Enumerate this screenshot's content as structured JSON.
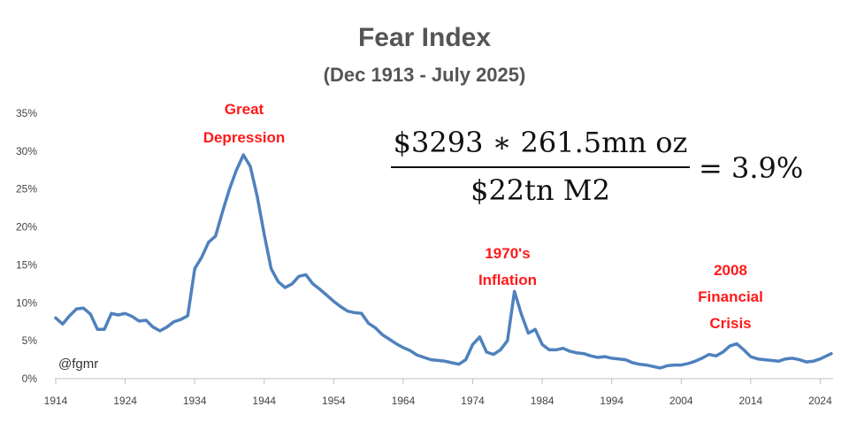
{
  "chart_data": {
    "type": "line",
    "title": "Fear Index",
    "subtitle": "(Dec 1913 - July 2025)",
    "xlabel": "",
    "ylabel": "",
    "xlim": [
      1914,
      2025.6
    ],
    "ylim": [
      0,
      35
    ],
    "grid": false,
    "x_ticks": [
      "1914",
      "1924",
      "1934",
      "1944",
      "1954",
      "1964",
      "1974",
      "1984",
      "1994",
      "2004",
      "2014",
      "2024"
    ],
    "y_ticks": [
      "0%",
      "5%",
      "10%",
      "15%",
      "20%",
      "25%",
      "30%",
      "35%"
    ],
    "color": "#4f81bd",
    "series": [
      {
        "points": [
          [
            1914,
            8.0
          ],
          [
            1915,
            7.2
          ],
          [
            1916,
            8.3
          ],
          [
            1917,
            9.2
          ],
          [
            1918,
            9.3
          ],
          [
            1919,
            8.5
          ],
          [
            1920,
            6.5
          ],
          [
            1921,
            6.5
          ],
          [
            1922,
            8.6
          ],
          [
            1923,
            8.4
          ],
          [
            1924,
            8.6
          ],
          [
            1925,
            8.2
          ],
          [
            1926,
            7.6
          ],
          [
            1927,
            7.7
          ],
          [
            1928,
            6.8
          ],
          [
            1929,
            6.3
          ],
          [
            1930,
            6.8
          ],
          [
            1931,
            7.5
          ],
          [
            1932,
            7.8
          ],
          [
            1933,
            8.3
          ],
          [
            1934,
            14.5
          ],
          [
            1935,
            16.0
          ],
          [
            1936,
            18.0
          ],
          [
            1937,
            18.8
          ],
          [
            1938,
            22.0
          ],
          [
            1939,
            25.0
          ],
          [
            1940,
            27.5
          ],
          [
            1941,
            29.5
          ],
          [
            1942,
            28.0
          ],
          [
            1943,
            24.0
          ],
          [
            1944,
            19.0
          ],
          [
            1945,
            14.5
          ],
          [
            1946,
            12.8
          ],
          [
            1947,
            12.0
          ],
          [
            1948,
            12.5
          ],
          [
            1949,
            13.5
          ],
          [
            1950,
            13.7
          ],
          [
            1951,
            12.5
          ],
          [
            1952,
            11.8
          ],
          [
            1953,
            11.0
          ],
          [
            1954,
            10.2
          ],
          [
            1955,
            9.5
          ],
          [
            1956,
            8.9
          ],
          [
            1957,
            8.7
          ],
          [
            1958,
            8.6
          ],
          [
            1959,
            7.3
          ],
          [
            1960,
            6.7
          ],
          [
            1961,
            5.8
          ],
          [
            1962,
            5.2
          ],
          [
            1963,
            4.6
          ],
          [
            1964,
            4.1
          ],
          [
            1965,
            3.7
          ],
          [
            1966,
            3.1
          ],
          [
            1967,
            2.8
          ],
          [
            1968,
            2.5
          ],
          [
            1969,
            2.4
          ],
          [
            1970,
            2.3
          ],
          [
            1971,
            2.1
          ],
          [
            1972,
            1.9
          ],
          [
            1973,
            2.5
          ],
          [
            1974,
            4.5
          ],
          [
            1975,
            5.5
          ],
          [
            1976,
            3.5
          ],
          [
            1977,
            3.2
          ],
          [
            1978,
            3.8
          ],
          [
            1979,
            5.0
          ],
          [
            1980,
            11.5
          ],
          [
            1981,
            8.5
          ],
          [
            1982,
            6.0
          ],
          [
            1983,
            6.5
          ],
          [
            1984,
            4.5
          ],
          [
            1985,
            3.8
          ],
          [
            1986,
            3.8
          ],
          [
            1987,
            4.0
          ],
          [
            1988,
            3.6
          ],
          [
            1989,
            3.4
          ],
          [
            1990,
            3.3
          ],
          [
            1991,
            3.0
          ],
          [
            1992,
            2.8
          ],
          [
            1993,
            2.9
          ],
          [
            1994,
            2.7
          ],
          [
            1995,
            2.6
          ],
          [
            1996,
            2.5
          ],
          [
            1997,
            2.1
          ],
          [
            1998,
            1.9
          ],
          [
            1999,
            1.8
          ],
          [
            2000,
            1.6
          ],
          [
            2001,
            1.4
          ],
          [
            2002,
            1.7
          ],
          [
            2003,
            1.8
          ],
          [
            2004,
            1.8
          ],
          [
            2005,
            2.0
          ],
          [
            2006,
            2.3
          ],
          [
            2007,
            2.7
          ],
          [
            2008,
            3.2
          ],
          [
            2009,
            3.0
          ],
          [
            2010,
            3.5
          ],
          [
            2011,
            4.3
          ],
          [
            2012,
            4.6
          ],
          [
            2013,
            3.8
          ],
          [
            2014,
            2.9
          ],
          [
            2015,
            2.6
          ],
          [
            2016,
            2.5
          ],
          [
            2017,
            2.4
          ],
          [
            2018,
            2.3
          ],
          [
            2019,
            2.6
          ],
          [
            2020,
            2.7
          ],
          [
            2021,
            2.5
          ],
          [
            2022,
            2.2
          ],
          [
            2023,
            2.3
          ],
          [
            2024,
            2.6
          ],
          [
            2025.6,
            3.3
          ]
        ]
      }
    ],
    "annotations": [
      {
        "lines": [
          "Great",
          "Depression"
        ]
      },
      {
        "lines": [
          "1970's",
          "Inflation"
        ]
      },
      {
        "lines": [
          "2008",
          "Financial",
          "Crisis"
        ]
      }
    ]
  },
  "formula": {
    "numerator": "$3293 ∗ 261.5mn oz",
    "denominator": "$22tn M2",
    "result": "= 3.9%"
  },
  "watermark": "@fgmr"
}
